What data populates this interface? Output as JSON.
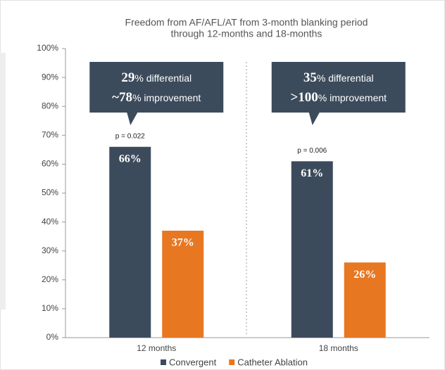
{
  "chart_data": {
    "type": "bar",
    "title": [
      "Freedom from AF/AFL/AT from 3-month blanking period",
      "through 12-months and 18-months"
    ],
    "categories": [
      "12 months",
      "18 months"
    ],
    "series": [
      {
        "name": "Convergent",
        "color": "#3c4b5c",
        "values": [
          66,
          61
        ],
        "value_labels": [
          "66%",
          "61%"
        ]
      },
      {
        "name": "Catheter Ablation",
        "color": "#e87722",
        "values": [
          37,
          26
        ],
        "value_labels": [
          "37%",
          "26%"
        ]
      }
    ],
    "ylim": [
      0,
      100
    ],
    "yticks": [
      {
        "value": 0,
        "label": "0%"
      },
      {
        "value": 10,
        "label": "10%"
      },
      {
        "value": 20,
        "label": "20%"
      },
      {
        "value": 30,
        "label": "30%"
      },
      {
        "value": 40,
        "label": "40%"
      },
      {
        "value": 50,
        "label": "50%"
      },
      {
        "value": 60,
        "label": "60%"
      },
      {
        "value": 70,
        "label": "70%"
      },
      {
        "value": 80,
        "label": "80%"
      },
      {
        "value": 90,
        "label": "90%"
      },
      {
        "value": 100,
        "label": "100%"
      }
    ],
    "annotations": [
      {
        "lines": [
          [
            "29",
            "% differential"
          ],
          [
            "~78",
            "% improvement"
          ]
        ],
        "p": "p = 0.022"
      },
      {
        "lines": [
          [
            "35",
            "% differential"
          ],
          [
            ">100",
            "% improvement"
          ]
        ],
        "p": "p = 0.006"
      }
    ],
    "legend": "bottom",
    "grid": false
  }
}
